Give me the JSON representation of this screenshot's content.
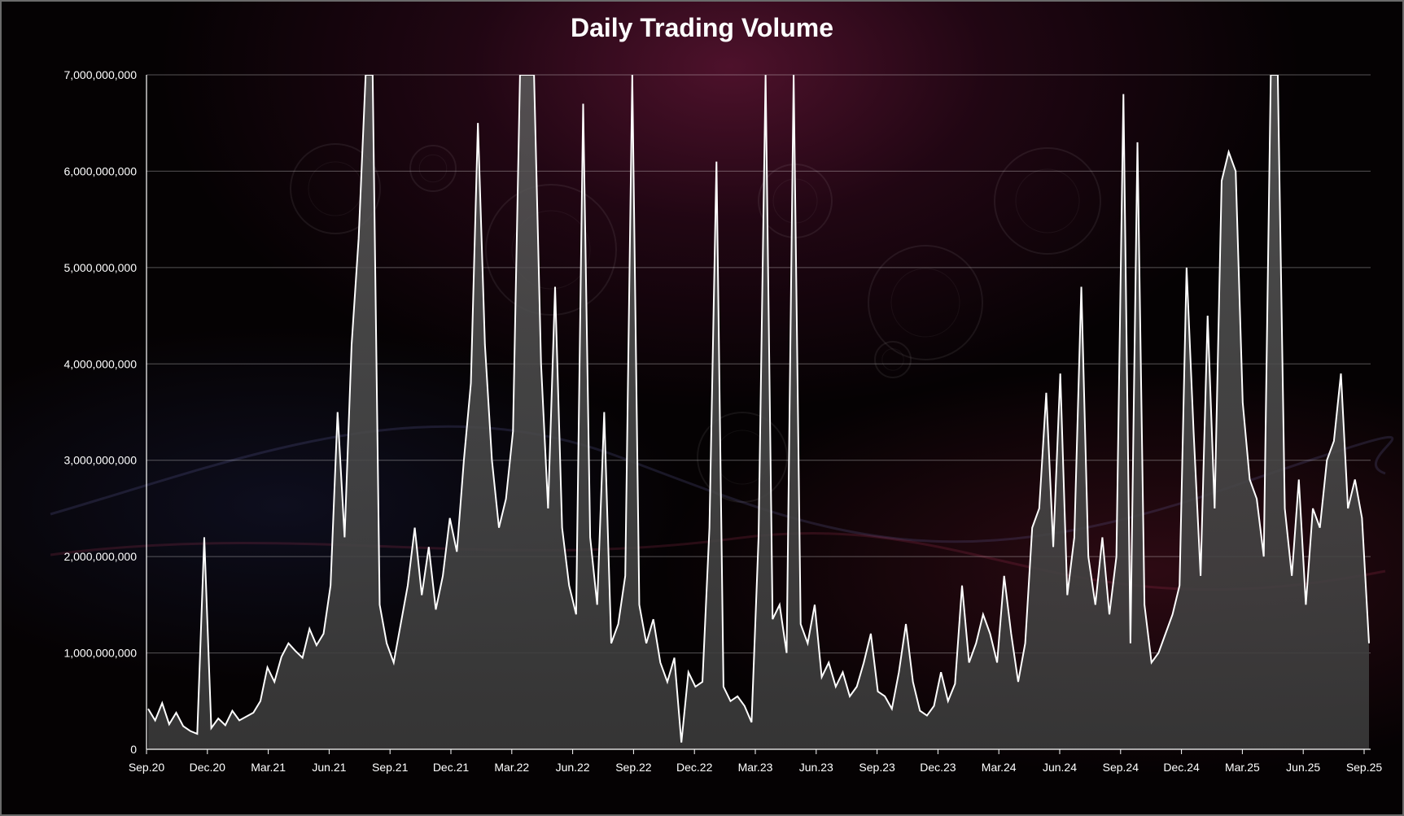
{
  "chart_data": {
    "type": "area",
    "title": "Daily Trading Volume",
    "xlabel": "",
    "ylabel": "",
    "ylim": [
      0,
      7000000000
    ],
    "grid": true,
    "x_ticks": [
      "Sep.20",
      "Dec.20",
      "Mar.21",
      "Jun.21",
      "Sep.21",
      "Dec.21",
      "Mar.22",
      "Jun.22",
      "Sep.22",
      "Dec.22",
      "Mar.23",
      "Jun.23",
      "Sep.23",
      "Dec.23",
      "Mar.24",
      "Jun.24",
      "Sep.24",
      "Dec.24",
      "Mar.25",
      "Jun.25",
      "Sep.25"
    ],
    "y_ticks": [
      "0",
      "1,000,000,000",
      "2,000,000,000",
      "3,000,000,000",
      "4,000,000,000",
      "5,000,000,000",
      "6,000,000,000",
      "7,000,000,000"
    ],
    "series": [
      {
        "values": [
          420000000,
          300000000,
          480000000,
          260000000,
          380000000,
          240000000,
          190000000,
          160000000,
          2200000000,
          220000000,
          320000000,
          250000000,
          400000000,
          300000000,
          340000000,
          380000000,
          500000000,
          850000000,
          700000000,
          960000000,
          1100000000,
          1020000000,
          950000000,
          1250000000,
          1080000000,
          1200000000,
          1700000000,
          3500000000,
          2200000000,
          4200000000,
          5300000000,
          7000000000,
          7000000000,
          1500000000,
          1100000000,
          900000000,
          1300000000,
          1700000000,
          2300000000,
          1600000000,
          2100000000,
          1450000000,
          1800000000,
          2400000000,
          2050000000,
          3000000000,
          3800000000,
          6500000000,
          4200000000,
          3000000000,
          2300000000,
          2600000000,
          3300000000,
          7000000000,
          7000000000,
          7000000000,
          4000000000,
          2500000000,
          4800000000,
          2300000000,
          1700000000,
          1400000000,
          6700000000,
          2200000000,
          1500000000,
          3500000000,
          1100000000,
          1300000000,
          1800000000,
          7000000000,
          1500000000,
          1100000000,
          1350000000,
          900000000,
          700000000,
          950000000,
          70000000,
          800000000,
          650000000,
          700000000,
          2300000000,
          6100000000,
          650000000,
          500000000,
          550000000,
          450000000,
          280000000,
          2200000000,
          7000000000,
          1350000000,
          1500000000,
          1000000000,
          7000000000,
          1300000000,
          1100000000,
          1500000000,
          750000000,
          900000000,
          650000000,
          800000000,
          550000000,
          650000000,
          900000000,
          1200000000,
          600000000,
          550000000,
          420000000,
          800000000,
          1300000000,
          700000000,
          400000000,
          350000000,
          450000000,
          800000000,
          500000000,
          680000000,
          1700000000,
          900000000,
          1100000000,
          1400000000,
          1200000000,
          900000000,
          1800000000,
          1200000000,
          700000000,
          1100000000,
          2300000000,
          2500000000,
          3700000000,
          2100000000,
          3900000000,
          1600000000,
          2200000000,
          4800000000,
          2000000000,
          1500000000,
          2200000000,
          1400000000,
          2000000000,
          6800000000,
          1100000000,
          6300000000,
          1500000000,
          900000000,
          1000000000,
          1200000000,
          1400000000,
          1700000000,
          5000000000,
          3300000000,
          1800000000,
          4500000000,
          2500000000,
          5900000000,
          6200000000,
          6000000000,
          3600000000,
          2800000000,
          2600000000,
          2000000000,
          7000000000,
          7000000000,
          2500000000,
          1800000000,
          2800000000,
          1500000000,
          2500000000,
          2300000000,
          3000000000,
          3200000000,
          3900000000,
          2500000000,
          2800000000,
          2400000000,
          1100000000
        ]
      }
    ]
  }
}
